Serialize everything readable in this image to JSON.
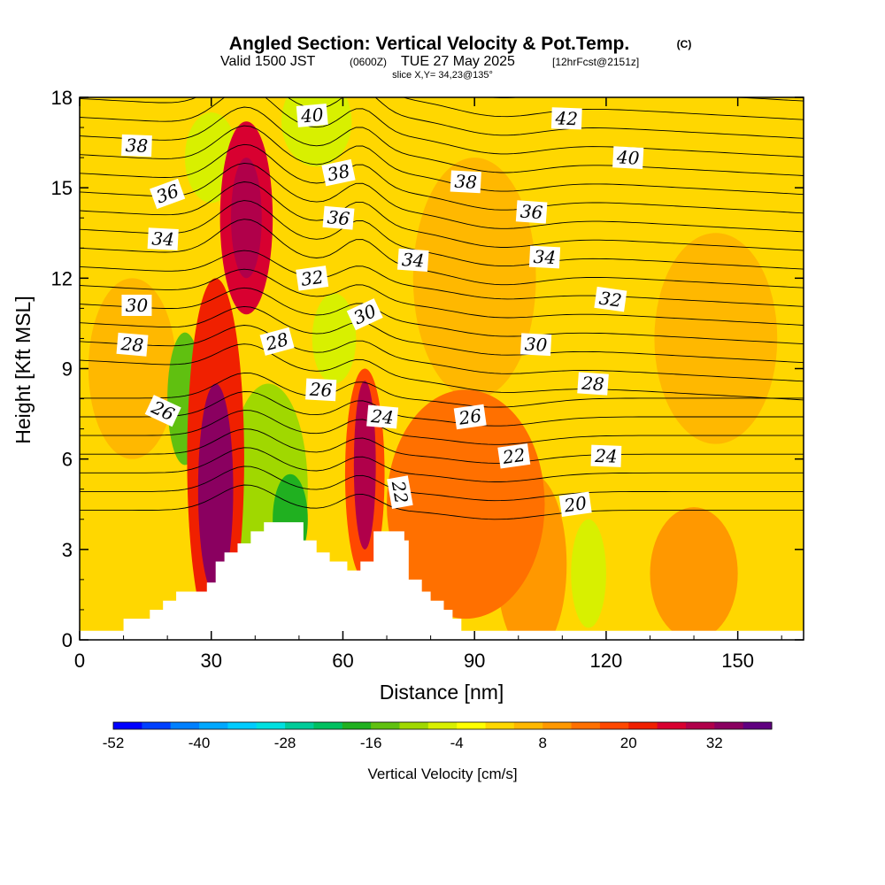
{
  "title": {
    "main": "Angled Section: Vertical Velocity & Pot.Temp.",
    "copyright": "(C)",
    "valid_prefix": "Valid 1500 JST",
    "valid_z": "(0600Z)",
    "valid_date": "TUE 27 May 2025",
    "valid_fcst": "[12hrFcst@2151z]",
    "slice": "slice X,Y= 34,23@135°"
  },
  "chart_data": {
    "type": "contour",
    "xlabel": "Distance [nm]",
    "ylabel": "Height [Kft MSL]",
    "xlim": [
      0,
      165
    ],
    "ylim": [
      0,
      18
    ],
    "x_ticks": [
      0,
      30,
      60,
      90,
      120,
      150
    ],
    "y_ticks": [
      0,
      3,
      6,
      9,
      12,
      15,
      18
    ],
    "terrain": [
      [
        0,
        0.3
      ],
      [
        10,
        0.7
      ],
      [
        16,
        1.0
      ],
      [
        19,
        1.3
      ],
      [
        22,
        1.6
      ],
      [
        29,
        1.9
      ],
      [
        31,
        2.6
      ],
      [
        33,
        2.9
      ],
      [
        36,
        3.2
      ],
      [
        39,
        3.6
      ],
      [
        42,
        3.9
      ],
      [
        51,
        3.3
      ],
      [
        54,
        2.9
      ],
      [
        57,
        2.6
      ],
      [
        61,
        2.3
      ],
      [
        64,
        2.6
      ],
      [
        67,
        3.6
      ],
      [
        74,
        3.3
      ],
      [
        75,
        2.0
      ],
      [
        78,
        1.6
      ],
      [
        80,
        1.3
      ],
      [
        83,
        1.0
      ],
      [
        85,
        0.7
      ],
      [
        87,
        0.3
      ],
      [
        165,
        0.3
      ]
    ],
    "velocity_colorbar": {
      "label": "Vertical Velocity [cm/s]",
      "levels": [
        -52,
        -48,
        -44,
        -40,
        -36,
        -32,
        -28,
        -24,
        -20,
        -16,
        -12,
        -8,
        -4,
        0,
        4,
        8,
        12,
        16,
        20,
        24,
        28,
        32,
        36
      ],
      "tick_labels": [
        "-52",
        "-40",
        "-28",
        "-16",
        "-4",
        "8",
        "20",
        "32"
      ],
      "colors": [
        "#0000ff",
        "#0040ff",
        "#0080ff",
        "#00a8ff",
        "#00ccff",
        "#00e0e0",
        "#00cc99",
        "#00c060",
        "#20b020",
        "#60c010",
        "#a0d800",
        "#d8f000",
        "#ffff00",
        "#ffd700",
        "#ffb800",
        "#ff9800",
        "#ff7000",
        "#ff4800",
        "#f02000",
        "#d80030",
        "#b0004a",
        "#8a0060",
        "#600080"
      ]
    },
    "velocity_features": [
      {
        "x": 38,
        "y": 14.0,
        "rx": 6,
        "ry": 3.2,
        "v": 24
      },
      {
        "x": 38,
        "y": 14.0,
        "rx": 3.5,
        "ry": 2.0,
        "v": 30
      },
      {
        "x": 31,
        "y": 5.0,
        "rx": 4,
        "ry": 3.5,
        "v": 34
      },
      {
        "x": 31,
        "y": 6.0,
        "rx": 6.5,
        "ry": 6.0,
        "v": 22
      },
      {
        "x": 65,
        "y": 5.8,
        "rx": 2.5,
        "ry": 2.8,
        "v": 28
      },
      {
        "x": 65,
        "y": 5.5,
        "rx": 4.5,
        "ry": 3.5,
        "v": 16
      },
      {
        "x": 88,
        "y": 4.5,
        "rx": 18,
        "ry": 3.8,
        "v": 14
      },
      {
        "x": 103,
        "y": 2.5,
        "rx": 8,
        "ry": 3.0,
        "v": 8
      },
      {
        "x": 24,
        "y": 8.0,
        "rx": 4,
        "ry": 2.2,
        "v": -14
      },
      {
        "x": 43,
        "y": 5.0,
        "rx": 9,
        "ry": 3.5,
        "v": -10
      },
      {
        "x": 48,
        "y": 4.0,
        "rx": 4,
        "ry": 1.5,
        "v": -18
      },
      {
        "x": 30,
        "y": 16.0,
        "rx": 6,
        "ry": 1.5,
        "v": -8
      },
      {
        "x": 54,
        "y": 17.2,
        "rx": 8,
        "ry": 1.5,
        "v": -8
      },
      {
        "x": 58,
        "y": 10.0,
        "rx": 5,
        "ry": 1.5,
        "v": -6
      },
      {
        "x": 116,
        "y": 2.2,
        "rx": 4,
        "ry": 1.8,
        "v": -8
      },
      {
        "x": 140,
        "y": 2.2,
        "rx": 10,
        "ry": 2.2,
        "v": 8
      },
      {
        "x": 12,
        "y": 9.0,
        "rx": 10,
        "ry": 3.0,
        "v": 6
      },
      {
        "x": 90,
        "y": 12.0,
        "rx": 14,
        "ry": 4.0,
        "v": 4
      },
      {
        "x": 145,
        "y": 10.0,
        "rx": 14,
        "ry": 3.5,
        "v": 6
      }
    ],
    "theta_levels": [
      20,
      21,
      22,
      23,
      24,
      25,
      26,
      27,
      28,
      29,
      30,
      31,
      32,
      33,
      34,
      35,
      36,
      37,
      38,
      39,
      40,
      41,
      42,
      43
    ],
    "theta_labels": [
      {
        "text": "40",
        "x": 53,
        "y": 17.4,
        "angle": 5
      },
      {
        "text": "42",
        "x": 111,
        "y": 17.3,
        "angle": -2
      },
      {
        "text": "38",
        "x": 13,
        "y": 16.4,
        "angle": -2
      },
      {
        "text": "40",
        "x": 125,
        "y": 16.0,
        "angle": -3
      },
      {
        "text": "38",
        "x": 59,
        "y": 15.5,
        "angle": 12
      },
      {
        "text": "38",
        "x": 88,
        "y": 15.2,
        "angle": -3
      },
      {
        "text": "36",
        "x": 20,
        "y": 14.8,
        "angle": 20
      },
      {
        "text": "36",
        "x": 59,
        "y": 14.0,
        "angle": -5
      },
      {
        "text": "36",
        "x": 103,
        "y": 14.2,
        "angle": -4
      },
      {
        "text": "34",
        "x": 19,
        "y": 13.3,
        "angle": -3
      },
      {
        "text": "34",
        "x": 76,
        "y": 12.6,
        "angle": -4
      },
      {
        "text": "34",
        "x": 106,
        "y": 12.7,
        "angle": -3
      },
      {
        "text": "32",
        "x": 53,
        "y": 12.0,
        "angle": 8
      },
      {
        "text": "32",
        "x": 121,
        "y": 11.3,
        "angle": -8
      },
      {
        "text": "30",
        "x": 13,
        "y": 11.1,
        "angle": 0
      },
      {
        "text": "30",
        "x": 65,
        "y": 10.8,
        "angle": 25
      },
      {
        "text": "30",
        "x": 104,
        "y": 9.8,
        "angle": -3
      },
      {
        "text": "28",
        "x": 12,
        "y": 9.8,
        "angle": -5
      },
      {
        "text": "28",
        "x": 45,
        "y": 9.9,
        "angle": 15
      },
      {
        "text": "28",
        "x": 117,
        "y": 8.5,
        "angle": -4
      },
      {
        "text": "26",
        "x": 19,
        "y": 7.6,
        "angle": -25
      },
      {
        "text": "26",
        "x": 55,
        "y": 8.3,
        "angle": -3
      },
      {
        "text": "26",
        "x": 89,
        "y": 7.4,
        "angle": 8
      },
      {
        "text": "24",
        "x": 69,
        "y": 7.4,
        "angle": -5
      },
      {
        "text": "24",
        "x": 120,
        "y": 6.1,
        "angle": -2
      },
      {
        "text": "22",
        "x": 99,
        "y": 6.1,
        "angle": 8
      },
      {
        "text": "22",
        "x": 73,
        "y": 4.9,
        "angle": -80
      },
      {
        "text": "20",
        "x": 113,
        "y": 4.5,
        "angle": 8
      }
    ]
  }
}
